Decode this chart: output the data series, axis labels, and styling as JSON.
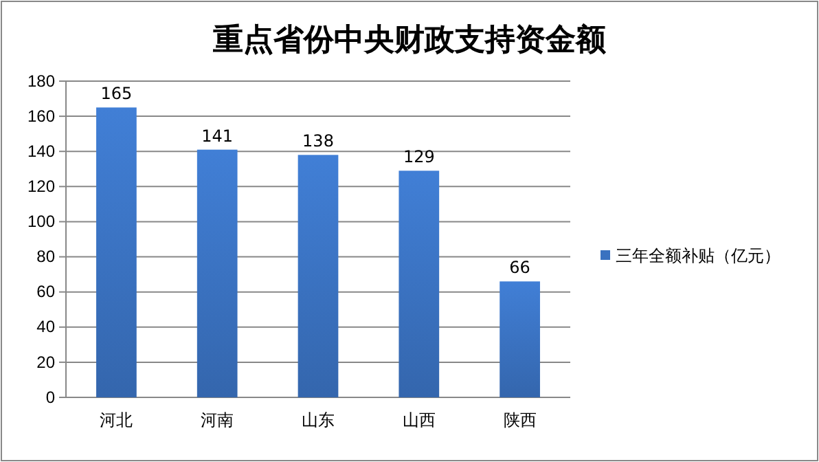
{
  "chart_data": {
    "type": "bar",
    "title": "重点省份中央财政支持资金额",
    "categories": [
      "河北",
      "河南",
      "山东",
      "山西",
      "陕西"
    ],
    "series": [
      {
        "name": "三年全额补贴（亿元）",
        "color": "#3a72c0",
        "values": [
          165,
          141,
          138,
          129,
          66
        ]
      }
    ],
    "ylim": [
      0,
      180
    ],
    "yticks": [
      0,
      20,
      40,
      60,
      80,
      100,
      120,
      140,
      160,
      180
    ],
    "grid": "y",
    "legend": "right",
    "data_labels": true
  }
}
